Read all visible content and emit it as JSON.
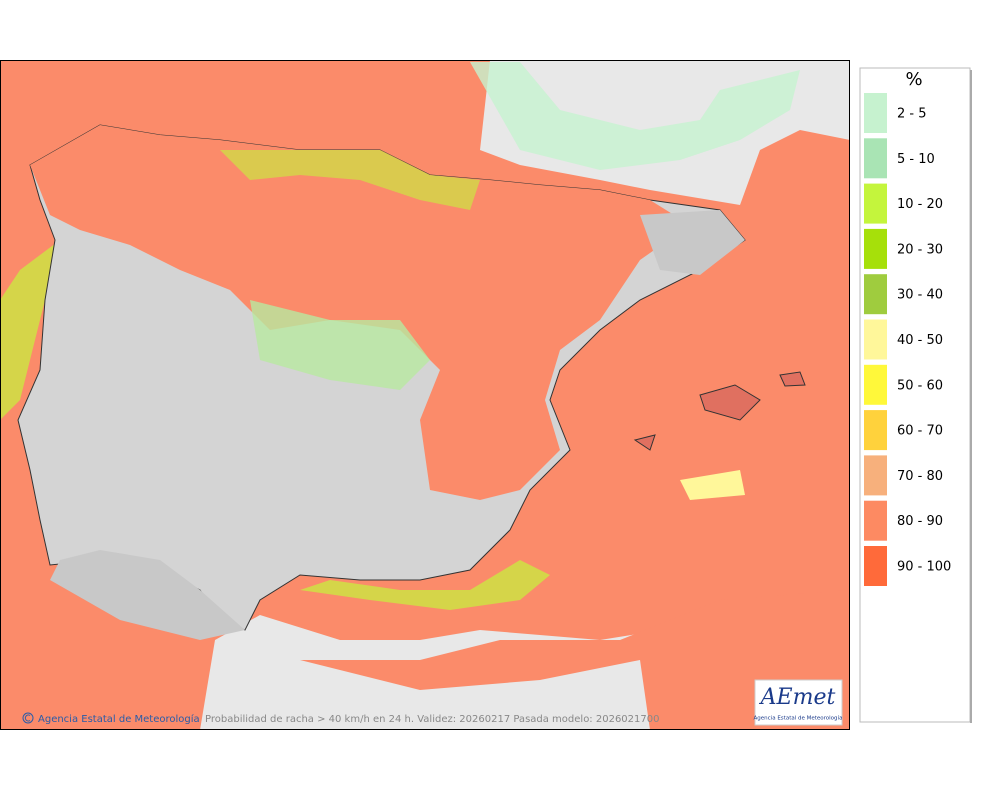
{
  "legend": {
    "title": "%",
    "items": [
      {
        "label": "2 - 5",
        "color": "#c6f2cf"
      },
      {
        "label": "5 - 10",
        "color": "#a9e4b4"
      },
      {
        "label": "10 - 20",
        "color": "#c4f53c"
      },
      {
        "label": "20 - 30",
        "color": "#a6e00a"
      },
      {
        "label": "30 - 40",
        "color": "#9fcc3e"
      },
      {
        "label": "40 - 50",
        "color": "#fff79a"
      },
      {
        "label": "50 - 60",
        "color": "#fff83a"
      },
      {
        "label": "60 - 70",
        "color": "#ffd23c"
      },
      {
        "label": "70 - 80",
        "color": "#f7b07c"
      },
      {
        "label": "80 - 90",
        "color": "#fd8a62"
      },
      {
        "label": "90 - 100",
        "color": "#ff6a3a"
      }
    ]
  },
  "footer": {
    "credit": "Agencia Estatal de Meteorología",
    "caption": "Probabilidad de racha > 40 km/h en 24 h. Validez: 20260217 Pasada modelo: 2026021700"
  },
  "logo": {
    "name": "AEmet",
    "subtitle": "Agencia Estatal de Meteorología"
  }
}
